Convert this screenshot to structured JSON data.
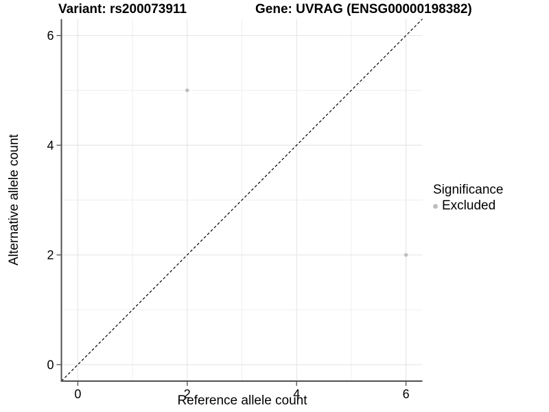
{
  "figure": {
    "title_left": "Variant: rs200073911",
    "title_right": "Gene: UVRAG (ENSG00000198382)"
  },
  "chart_data": {
    "type": "scatter",
    "title": "Variant: rs200073911    Gene: UVRAG (ENSG00000198382)",
    "xlabel": "Reference allele count",
    "ylabel": "Alternative allele count",
    "xlim": [
      -0.3,
      6.3
    ],
    "ylim": [
      -0.3,
      6.3
    ],
    "x_major_ticks": [
      0,
      2,
      4,
      6
    ],
    "x_minor_gridlines": [
      1,
      3,
      5
    ],
    "y_major_ticks": [
      0,
      2,
      4,
      6
    ],
    "y_minor_gridlines": [
      1,
      3,
      5
    ],
    "grid": "major+minor",
    "points": [
      {
        "x": 2,
        "y": 5,
        "series": "Excluded"
      },
      {
        "x": 6,
        "y": 2,
        "series": "Excluded"
      }
    ],
    "reference_line": {
      "kind": "identity y=x",
      "style": "dashed",
      "color": "#000000"
    },
    "legend": {
      "title": "Significance",
      "position": "right",
      "entries": [
        {
          "label": "Excluded",
          "color": "#bdbdbd"
        }
      ]
    },
    "colors": {
      "point": "#bdbdbd",
      "grid_major": "#e4e4e4",
      "grid_minor": "#f0f0f0",
      "axis": "#4f4f4f",
      "tick_text": "#000000",
      "background": "#ffffff"
    }
  }
}
